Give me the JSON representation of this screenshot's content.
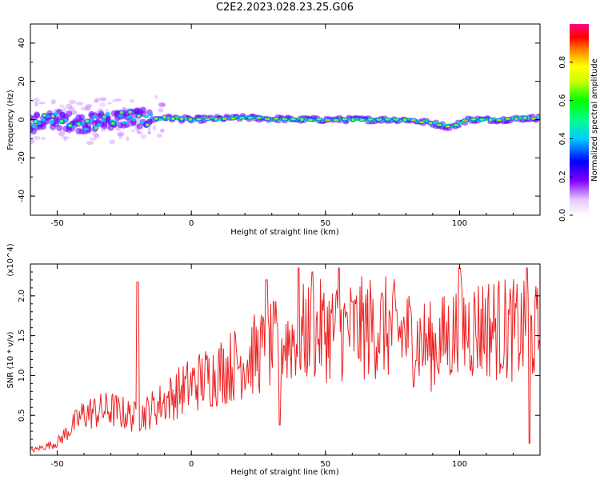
{
  "chart_data": [
    {
      "type": "heatmap",
      "title": "C2E2.2023.028.23.25.G06",
      "xlabel": "Height of straight line (km)",
      "ylabel": "Frequency (Hz)",
      "xlim": [
        -60,
        130
      ],
      "ylim": [
        -50,
        50
      ],
      "xticks": [
        -50,
        0,
        50,
        100
      ],
      "yticks": [
        -40,
        -20,
        0,
        20,
        40
      ],
      "colorbar": {
        "label": "Normalized spectral amplitude",
        "range": [
          0,
          1
        ],
        "ticks": [
          0.0,
          0.2,
          0.4,
          0.6,
          0.8
        ]
      },
      "ridge": [
        {
          "x": -60,
          "y": -2
        },
        {
          "x": -50,
          "y": 0
        },
        {
          "x": -40,
          "y": -2
        },
        {
          "x": -30,
          "y": 0
        },
        {
          "x": -20,
          "y": 1
        },
        {
          "x": -15,
          "y": 0
        },
        {
          "x": -10,
          "y": 1
        },
        {
          "x": 0,
          "y": 0
        },
        {
          "x": 20,
          "y": 1
        },
        {
          "x": 40,
          "y": 0
        },
        {
          "x": 60,
          "y": 0
        },
        {
          "x": 80,
          "y": 0
        },
        {
          "x": 90,
          "y": -2
        },
        {
          "x": 97,
          "y": -4
        },
        {
          "x": 103,
          "y": 0
        },
        {
          "x": 115,
          "y": 0
        },
        {
          "x": 130,
          "y": 1
        }
      ]
    },
    {
      "type": "line",
      "title": "",
      "xlabel": "Height of straight line (km)",
      "ylabel": "SNR (10 * v/v)",
      "yscale_label": "(x10^4)",
      "xlim": [
        -60,
        130
      ],
      "ylim": [
        0,
        2.4
      ],
      "xticks": [
        -50,
        0,
        50,
        100
      ],
      "yticks": [
        0.5,
        1.0,
        1.5,
        2.0
      ],
      "line_color": "#ee2222",
      "series": [
        {
          "trend": [
            {
              "x": -60,
              "y": 0.05
            },
            {
              "x": -50,
              "y": 0.15
            },
            {
              "x": -40,
              "y": 0.5
            },
            {
              "x": -30,
              "y": 0.55
            },
            {
              "x": -20,
              "y": 0.45
            },
            {
              "x": -10,
              "y": 0.65
            },
            {
              "x": 0,
              "y": 0.85
            },
            {
              "x": 10,
              "y": 1.0
            },
            {
              "x": 20,
              "y": 1.15
            },
            {
              "x": 30,
              "y": 1.3
            },
            {
              "x": 40,
              "y": 1.45
            },
            {
              "x": 50,
              "y": 1.5
            },
            {
              "x": 60,
              "y": 1.5
            },
            {
              "x": 70,
              "y": 1.55
            },
            {
              "x": 80,
              "y": 1.45
            },
            {
              "x": 90,
              "y": 1.3
            },
            {
              "x": 100,
              "y": 1.5
            },
            {
              "x": 110,
              "y": 1.55
            },
            {
              "x": 120,
              "y": 1.5
            },
            {
              "x": 130,
              "y": 1.45
            }
          ],
          "spikes": [
            {
              "x": -20,
              "y": 2.17
            },
            {
              "x": 28,
              "y": 2.2
            },
            {
              "x": 40,
              "y": 2.35
            },
            {
              "x": 45,
              "y": 2.3
            },
            {
              "x": 55,
              "y": 2.35
            },
            {
              "x": 100,
              "y": 2.35
            },
            {
              "x": 125,
              "y": 2.35
            },
            {
              "x": 33,
              "y": 0.38
            },
            {
              "x": 126,
              "y": 0.15
            }
          ]
        }
      ]
    }
  ]
}
